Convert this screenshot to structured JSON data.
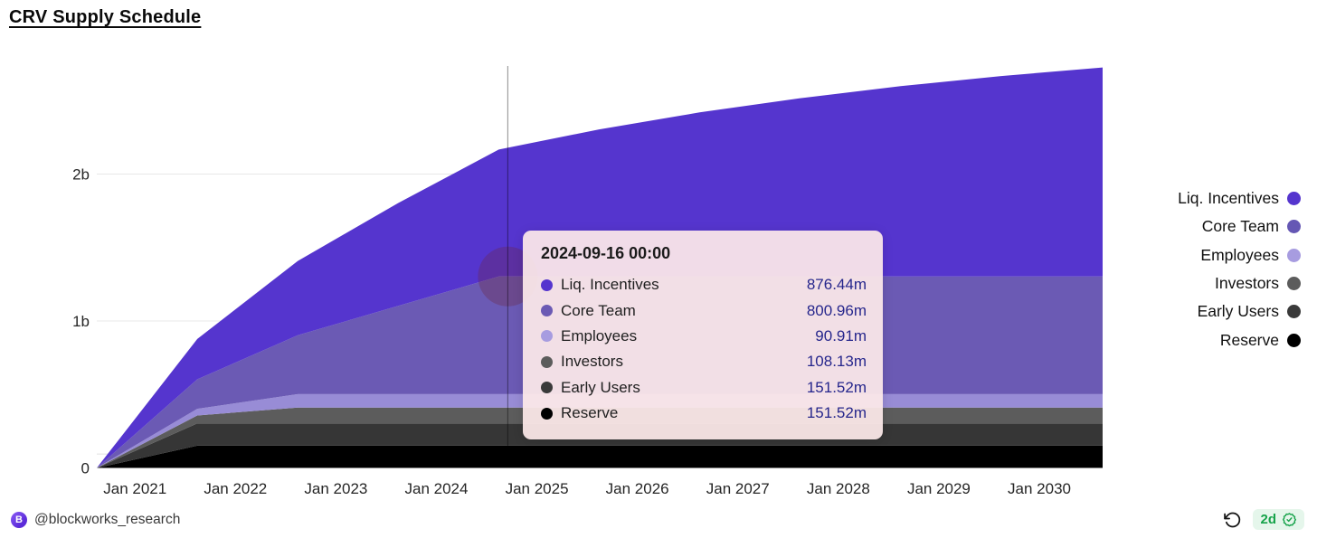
{
  "title": "CRV Supply Schedule",
  "colors": {
    "liq_incentives": "#5535ce",
    "core_team": "#6b5ab4",
    "employees": "#988cd6",
    "investors": "#5c5c5c",
    "early_users": "#363636",
    "reserve": "#000000",
    "grid": "#e8e8e8",
    "pointer_line": "rgba(0,0,0,0.45)",
    "tooltip_bg": "rgba(253,234,233,0.93)",
    "value_text": "#26268c",
    "badge_green": "#16a34a",
    "badge_bg": "#e5f6eb"
  },
  "tooltip": {
    "date": "2024-09-16 00:00",
    "rows": [
      {
        "label": "Liq. Incentives",
        "value": "876.44m",
        "color": "#5535ce"
      },
      {
        "label": "Core Team",
        "value": "800.96m",
        "color": "#6b5ab4"
      },
      {
        "label": "Employees",
        "value": "90.91m",
        "color": "#a79ce0"
      },
      {
        "label": "Investors",
        "value": "108.13m",
        "color": "#5c5c5c"
      },
      {
        "label": "Early Users",
        "value": "151.52m",
        "color": "#3a3a3a"
      },
      {
        "label": "Reserve",
        "value": "151.52m",
        "color": "#000000"
      }
    ]
  },
  "legend": {
    "items": [
      {
        "label": "Liq. Incentives",
        "color": "#5535ce"
      },
      {
        "label": "Core Team",
        "color": "#6557b4"
      },
      {
        "label": "Employees",
        "color": "#a79ce0"
      },
      {
        "label": "Investors",
        "color": "#5c5c5c"
      },
      {
        "label": "Early Users",
        "color": "#3a3a3a"
      },
      {
        "label": "Reserve",
        "color": "#000000"
      }
    ]
  },
  "chart_data": {
    "type": "area",
    "stacked": true,
    "title": "CRV Supply Schedule",
    "x_unit": "decimal_year",
    "xlim": [
      2020.62,
      2030.63
    ],
    "ylim_millions": [
      0,
      2740
    ],
    "x": [
      2020.62,
      2021.62,
      2022.62,
      2023.62,
      2024.62,
      2025.62,
      2026.62,
      2027.62,
      2028.62,
      2029.62,
      2030.63
    ],
    "series_order": "bottom-to-top",
    "series": [
      {
        "name": "Reserve",
        "color": "#000000",
        "values_millions": [
          0,
          151.52,
          151.52,
          151.52,
          151.52,
          151.52,
          151.52,
          151.52,
          151.52,
          151.52,
          151.52
        ]
      },
      {
        "name": "Early Users",
        "color": "#363636",
        "values_millions": [
          0,
          151.52,
          151.52,
          151.52,
          151.52,
          151.52,
          151.52,
          151.52,
          151.52,
          151.52,
          151.52
        ]
      },
      {
        "name": "Investors",
        "color": "#5c5c5c",
        "values_millions": [
          0,
          54.07,
          108.13,
          108.13,
          108.13,
          108.13,
          108.13,
          108.13,
          108.13,
          108.13,
          108.13
        ]
      },
      {
        "name": "Employees",
        "color": "#988cd6",
        "values_millions": [
          0,
          45.46,
          90.91,
          90.91,
          90.91,
          90.91,
          90.91,
          90.91,
          90.91,
          90.91,
          90.91
        ]
      },
      {
        "name": "Core Team",
        "color": "#6b5ab4",
        "values_millions": [
          0,
          200.24,
          400.48,
          600.72,
          800.96,
          800.96,
          800.96,
          800.96,
          800.96,
          800.96,
          800.96
        ]
      },
      {
        "name": "Liq. Incentives",
        "color": "#5535ce",
        "values_millions": [
          0,
          274.8,
          505.9,
          700.2,
          863.5,
          1000.9,
          1116.4,
          1213.5,
          1295.2,
          1363.9,
          1422.2
        ]
      }
    ],
    "x_ticks": [
      {
        "v": 2021,
        "label": "Jan 2021"
      },
      {
        "v": 2022,
        "label": "Jan 2022"
      },
      {
        "v": 2023,
        "label": "Jan 2023"
      },
      {
        "v": 2024,
        "label": "Jan 2024"
      },
      {
        "v": 2025,
        "label": "Jan 2025"
      },
      {
        "v": 2026,
        "label": "Jan 2026"
      },
      {
        "v": 2027,
        "label": "Jan 2027"
      },
      {
        "v": 2028,
        "label": "Jan 2028"
      },
      {
        "v": 2029,
        "label": "Jan 2029"
      },
      {
        "v": 2030,
        "label": "Jan 2030"
      }
    ],
    "y_ticks": [
      {
        "v": 0,
        "label": "0"
      },
      {
        "v": 1000,
        "label": "1b"
      },
      {
        "v": 2000,
        "label": "2b"
      }
    ],
    "crosshair": {
      "x": 2024.71,
      "hover_value_millions": 95
    },
    "highlight": {
      "x": 2024.71,
      "stack_top_millions": 1303,
      "radius": 33
    },
    "legend_position": "right",
    "grid": "horizontal-only"
  },
  "footer": {
    "handle": "@blockworks_research",
    "avatar_letter": "B",
    "age_badge": "2d"
  },
  "icons": {
    "undo": "rotate-ccw-icon",
    "verified": "verified-check-icon",
    "avatar": "blockworks-logo"
  }
}
